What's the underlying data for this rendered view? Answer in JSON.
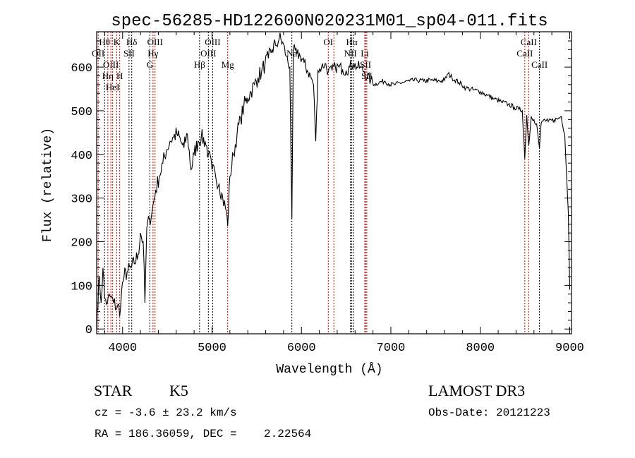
{
  "chart_data": {
    "type": "line",
    "title": "spec-56285-HD122600N020231M01_sp04-011.fits",
    "xlabel": "Wavelength (Å)",
    "ylabel": "Flux (relative)",
    "xlim": [
      3710,
      9020
    ],
    "ylim": [
      -11,
      681
    ],
    "xticks": [
      4000,
      5000,
      6000,
      7000,
      8000,
      9000
    ],
    "yticks": [
      0,
      100,
      200,
      300,
      400,
      500,
      600
    ],
    "grid": false,
    "series": [
      {
        "name": "flux",
        "color": "#000000",
        "x": [
          3712,
          3716,
          3740,
          3760,
          3780,
          3800,
          3830,
          3860,
          3900,
          3940,
          3976,
          3990,
          4016,
          4050,
          4095,
          4130,
          4173,
          4200,
          4230,
          4250,
          4270,
          4300,
          4330,
          4370,
          4410,
          4450,
          4490,
          4530,
          4570,
          4607,
          4650,
          4686,
          4725,
          4765,
          4800,
          4844,
          4880,
          4923,
          4960,
          5000,
          5040,
          5080,
          5120,
          5160,
          5175,
          5200,
          5240,
          5280,
          5320,
          5356,
          5400,
          5435,
          5475,
          5514,
          5555,
          5593,
          5630,
          5672,
          5710,
          5751,
          5790,
          5830,
          5870,
          5893,
          5910,
          5950,
          5987,
          6030,
          6066,
          6100,
          6135,
          6160,
          6185,
          6225,
          6263,
          6300,
          6342,
          6380,
          6420,
          6460,
          6500,
          6540,
          6578,
          6620,
          6658,
          6700,
          6737,
          6775,
          6815,
          6870,
          6934,
          6990,
          7050,
          7130,
          7210,
          7290,
          7367,
          7450,
          7525,
          7600,
          7640,
          7683,
          7760,
          7840,
          7920,
          8000,
          8080,
          8156,
          8236,
          8314,
          8380,
          8432,
          8470,
          8498,
          8520,
          8542,
          8570,
          8600,
          8630,
          8662,
          8680,
          8708,
          8760,
          8826,
          8870,
          8905,
          8944,
          8984,
          9000
        ],
        "y": [
          0,
          42,
          120,
          60,
          140,
          70,
          60,
          75,
          60,
          50,
          45,
          90,
          120,
          130,
          140,
          150,
          170,
          220,
          200,
          60,
          230,
          250,
          270,
          317,
          350,
          380,
          410,
          430,
          440,
          447,
          430,
          415,
          447,
          365,
          400,
          430,
          440,
          430,
          400,
          365,
          350,
          333,
          300,
          270,
          236,
          350,
          400,
          447,
          480,
          511,
          530,
          544,
          560,
          576,
          590,
          608,
          620,
          641,
          650,
          665,
          657,
          625,
          600,
          252,
          641,
          630,
          625,
          610,
          592,
          580,
          560,
          430,
          592,
          600,
          608,
          590,
          592,
          600,
          600,
          595,
          592,
          600,
          608,
          600,
          600,
          590,
          576,
          570,
          560,
          565,
          568,
          560,
          560,
          565,
          568,
          570,
          568,
          570,
          568,
          570,
          585,
          576,
          565,
          552,
          548,
          544,
          535,
          527,
          520,
          515,
          508,
          503,
          500,
          390,
          490,
          420,
          487,
          480,
          470,
          414,
          470,
          479,
          475,
          479,
          482,
          487,
          447,
          270,
          90
        ]
      }
    ],
    "spectral_lines": [
      {
        "label": "OII",
        "wave": 3727,
        "color": "#cc0000",
        "row": 2
      },
      {
        "label": "Hθ",
        "wave": 3798,
        "color": "#000000",
        "row": 1
      },
      {
        "label": "OIII",
        "wave": 3869,
        "color": "#cc0000",
        "row": 3
      },
      {
        "label": "Hη",
        "wave": 3835,
        "color": "#cc0000",
        "row": 3
      },
      {
        "label": "HeI",
        "wave": 3889,
        "color": "#cc0000",
        "row": 2
      },
      {
        "label": "K",
        "wave": 3934,
        "color": "#cc0000",
        "row": 1
      },
      {
        "label": "H",
        "wave": 3968,
        "color": "#cc0000",
        "row": 3
      },
      {
        "label": "SII",
        "wave": 4072,
        "color": "#000000",
        "row": 2
      },
      {
        "label": "Hδ",
        "wave": 4102,
        "color": "#000000",
        "row": 1
      },
      {
        "label": "G",
        "wave": 4305,
        "color": "#000000",
        "row": 3
      },
      {
        "label": "Hγ",
        "wave": 4340,
        "color": "#cc0000",
        "row": 2
      },
      {
        "label": "OIII",
        "wave": 4363,
        "color": "#cc0000",
        "row": 1
      },
      {
        "label": "Hβ",
        "wave": 4861,
        "color": "#000000",
        "row": 3
      },
      {
        "label": "OIII",
        "wave": 4959,
        "color": "#000000",
        "row": 2
      },
      {
        "label": "OIII",
        "wave": 5007,
        "color": "#000000",
        "row": 1
      },
      {
        "label": "Mg",
        "wave": 5175,
        "color": "#cc0000",
        "row": 3
      },
      {
        "label": "Na",
        "wave": 5893,
        "color": "#000000",
        "row": 2
      },
      {
        "label": "OI",
        "wave": 6300,
        "color": "#cc0000",
        "row": 1
      },
      {
        "label": "OI",
        "wave": 6363,
        "color": "#cc0000",
        "row": 0
      },
      {
        "label": "NII",
        "wave": 6548,
        "color": "#000000",
        "row": 2
      },
      {
        "label": "Hα",
        "wave": 6563,
        "color": "#000000",
        "row": 1
      },
      {
        "label": "NII",
        "wave": 6583,
        "color": "#000000",
        "row": 0
      },
      {
        "label": "Li",
        "wave": 6708,
        "color": "#cc0000",
        "row": 2
      },
      {
        "label": "SII",
        "wave": 6717,
        "color": "#cc0000",
        "row": 1
      },
      {
        "label": "SII",
        "wave": 6731,
        "color": "#cc0000",
        "row": 3
      },
      {
        "label": "CaII",
        "wave": 8498,
        "color": "#cc0000",
        "row": 2
      },
      {
        "label": "CaII",
        "wave": 8542,
        "color": "#cc0000",
        "row": 1
      },
      {
        "label": "CaII",
        "wave": 8662,
        "color": "#000000",
        "row": 3
      }
    ]
  },
  "info": {
    "object_class": "STAR",
    "subclass": "K5",
    "survey": "LAMOST DR3",
    "redshift": "cz = -3.6 ± 23.2 km/s",
    "obs_date": "Obs-Date: 20121223",
    "coords": "RA = 186.36059, DEC =    2.22564"
  }
}
